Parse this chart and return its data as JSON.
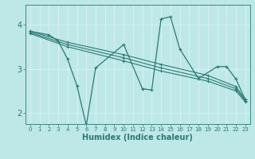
{
  "xlabel": "Humidex (Indice chaleur)",
  "xlim": [
    -0.5,
    23.5
  ],
  "ylim": [
    1.75,
    4.45
  ],
  "yticks": [
    2,
    3,
    4
  ],
  "xticks": [
    0,
    1,
    2,
    3,
    4,
    5,
    6,
    7,
    8,
    9,
    10,
    11,
    12,
    13,
    14,
    15,
    16,
    17,
    18,
    19,
    20,
    21,
    22,
    23
  ],
  "bg_color": "#bee8e8",
  "grid_color": "#d9f0f0",
  "line_color": "#2a7a72",
  "lines": [
    {
      "x": [
        0,
        2,
        3,
        4,
        5,
        6,
        7,
        10,
        12,
        13,
        14,
        15,
        16,
        18,
        20,
        21,
        22,
        23
      ],
      "y": [
        3.85,
        3.77,
        3.63,
        3.22,
        2.62,
        1.72,
        3.02,
        3.55,
        2.55,
        2.52,
        4.13,
        4.18,
        3.45,
        2.78,
        3.05,
        3.05,
        2.77,
        2.3
      ]
    },
    {
      "x": [
        0,
        4,
        10,
        14,
        19,
        22,
        23
      ],
      "y": [
        3.85,
        3.6,
        3.32,
        3.1,
        2.85,
        2.6,
        2.3
      ]
    },
    {
      "x": [
        0,
        4,
        10,
        14,
        19,
        22,
        23
      ],
      "y": [
        3.82,
        3.55,
        3.25,
        3.02,
        2.78,
        2.55,
        2.28
      ]
    },
    {
      "x": [
        0,
        4,
        10,
        14,
        19,
        22,
        23
      ],
      "y": [
        3.8,
        3.5,
        3.18,
        2.95,
        2.72,
        2.5,
        2.25
      ]
    }
  ],
  "xlabel_fontsize": 7,
  "ytick_fontsize": 7,
  "xtick_fontsize": 5
}
